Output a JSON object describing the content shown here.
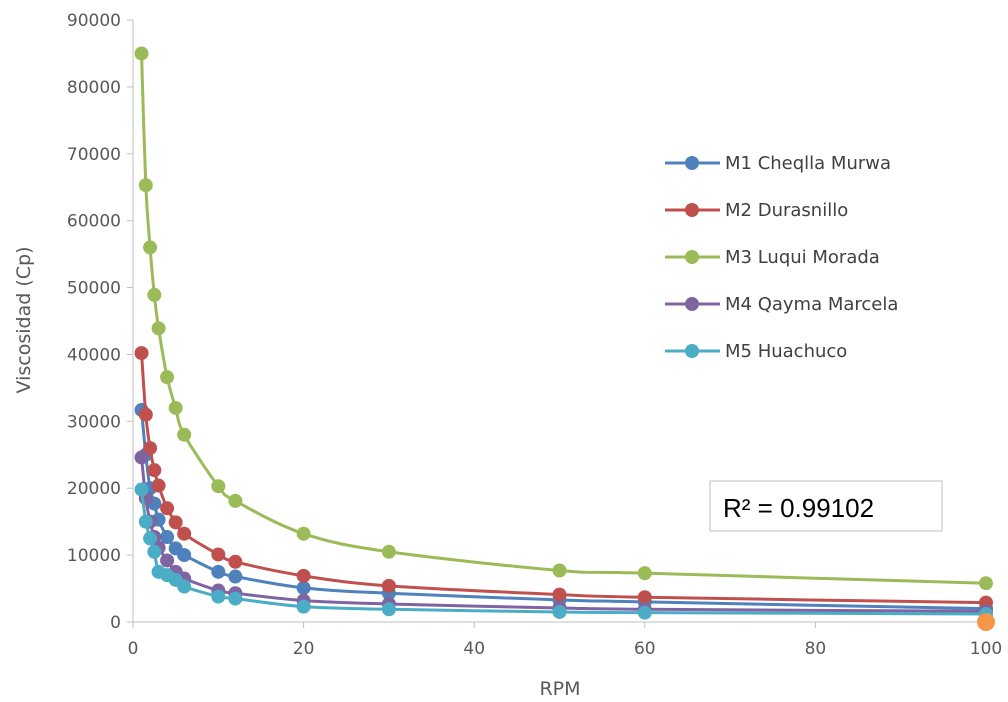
{
  "chart_data": {
    "type": "scatter",
    "xlabel": "RPM",
    "ylabel": "Viscosidad (Cp)",
    "xlim": [
      0,
      100
    ],
    "ylim": [
      0,
      90000
    ],
    "x_ticks": [
      "0",
      "20",
      "40",
      "60",
      "80",
      "100"
    ],
    "y_ticks": [
      "0",
      "10000",
      "20000",
      "30000",
      "40000",
      "50000",
      "60000",
      "70000",
      "80000",
      "90000"
    ],
    "grid": false,
    "legend_position": "right",
    "annotation": {
      "text": "R² = 0.99102"
    },
    "extra_point": {
      "x": 100,
      "y": 0,
      "color": "#F79646"
    },
    "series": [
      {
        "name": "M1 Cheqlla Murwa",
        "color": "#4F81BD",
        "x": [
          1,
          1.5,
          2,
          2.5,
          3,
          4,
          5,
          6,
          10,
          12,
          20,
          30,
          50,
          60,
          100
        ],
        "y": [
          31700,
          25000,
          20000,
          17700,
          15300,
          12700,
          11000,
          10000,
          7500,
          6800,
          5100,
          4300,
          3300,
          3000,
          2000
        ]
      },
      {
        "name": "M2 Durasnillo",
        "color": "#C0504D",
        "x": [
          1,
          1.5,
          2,
          2.5,
          3,
          4,
          5,
          6,
          10,
          12,
          20,
          30,
          50,
          60,
          100
        ],
        "y": [
          40200,
          31000,
          26000,
          22700,
          20400,
          17000,
          14900,
          13200,
          10100,
          9000,
          6900,
          5400,
          4100,
          3700,
          2900
        ]
      },
      {
        "name": "M3 Luqui Morada",
        "color": "#9BBB59",
        "x": [
          1,
          1.5,
          2,
          2.5,
          3,
          4,
          5,
          6,
          10,
          12,
          20,
          30,
          50,
          60,
          100
        ],
        "y": [
          85000,
          65300,
          56000,
          48900,
          43900,
          36600,
          32000,
          28000,
          20300,
          18100,
          13200,
          10500,
          7700,
          7300,
          5800
        ]
      },
      {
        "name": "M4 Qayma Marcela",
        "color": "#8064A2",
        "x": [
          1,
          1.5,
          2,
          2.5,
          3,
          4,
          5,
          6,
          10,
          12,
          20,
          30,
          50,
          60,
          100
        ],
        "y": [
          24600,
          18500,
          15000,
          12700,
          11100,
          9200,
          7500,
          6500,
          4700,
          4300,
          3200,
          2700,
          2100,
          1900,
          1600
        ]
      },
      {
        "name": "M5 Huachuco",
        "color": "#4BACC6",
        "x": [
          1,
          1.5,
          2,
          2.5,
          3,
          4,
          5,
          6,
          10,
          12,
          20,
          30,
          50,
          60,
          100
        ],
        "y": [
          19800,
          15000,
          12500,
          10500,
          7500,
          7000,
          6300,
          5300,
          3800,
          3500,
          2300,
          1900,
          1500,
          1400,
          1200
        ]
      }
    ]
  }
}
